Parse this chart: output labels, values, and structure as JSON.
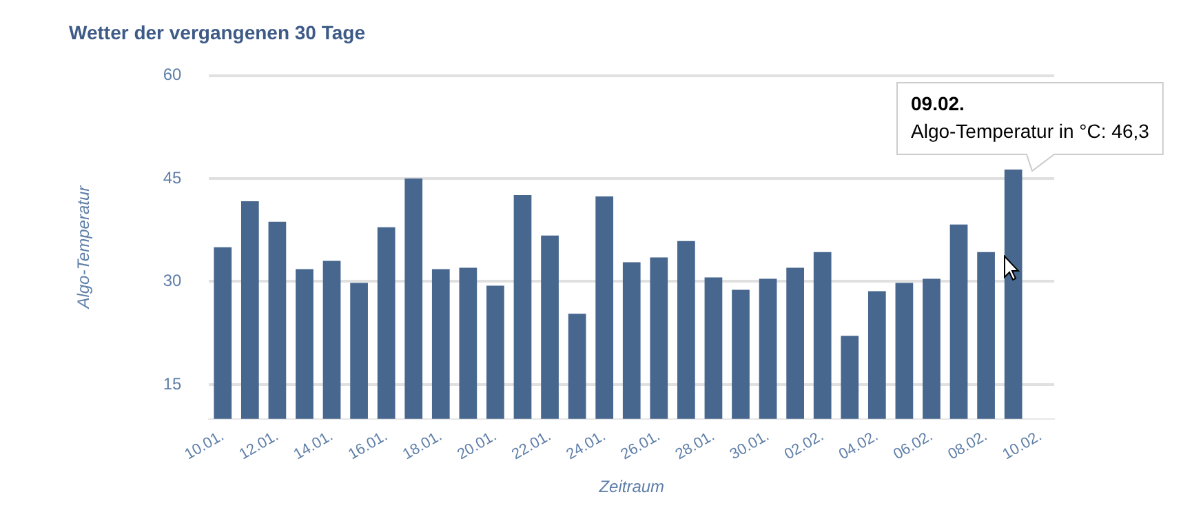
{
  "chart_data": {
    "type": "bar",
    "title": "Wetter der vergangenen 30 Tage",
    "xlabel": "Zeitraum",
    "ylabel": "Algo-Temperatur",
    "categories": [
      "10.01.",
      null,
      "12.01.",
      null,
      "14.01.",
      null,
      "16.01.",
      null,
      "18.01.",
      null,
      "20.01.",
      null,
      "22.01.",
      null,
      "24.01.",
      null,
      "26.01.",
      null,
      "28.01.",
      null,
      "30.01.",
      null,
      "02.02.",
      null,
      "04.02.",
      null,
      "06.02.",
      null,
      "08.02.",
      null,
      "10.02."
    ],
    "values": [
      35.0,
      41.7,
      38.7,
      31.8,
      33.0,
      29.8,
      37.9,
      45.0,
      31.8,
      32.0,
      29.4,
      42.6,
      36.7,
      25.3,
      42.4,
      32.8,
      33.5,
      35.9,
      30.6,
      28.8,
      30.4,
      32.0,
      34.3,
      22.1,
      28.6,
      29.8,
      30.4,
      38.3,
      34.3,
      46.3,
      null
    ],
    "color": "#47678f",
    "ylim": [
      10,
      60
    ],
    "yticks": [
      15,
      30,
      45,
      60
    ],
    "grid": "y",
    "legend": false,
    "annotations": [
      "09.02.",
      "Algo-Temperatur in °C: 46,3"
    ]
  }
}
